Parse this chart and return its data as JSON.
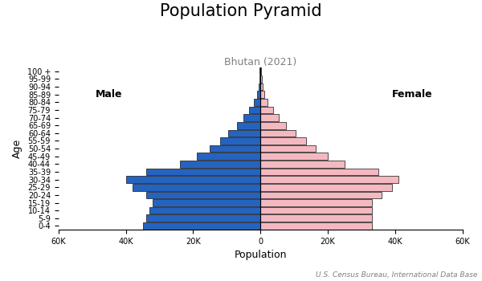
{
  "title": "Population Pyramid",
  "subtitle": "Bhutan (2021)",
  "xlabel": "Population",
  "ylabel": "Age",
  "source": "U.S. Census Bureau, International Data Base",
  "age_groups": [
    "0-4",
    "5-9",
    "10-14",
    "15-19",
    "20-24",
    "25-29",
    "30-34",
    "35-39",
    "40-44",
    "45-49",
    "50-54",
    "55-59",
    "60-64",
    "65-69",
    "70-74",
    "75-79",
    "80-84",
    "85-89",
    "90-94",
    "95-99",
    "100 +"
  ],
  "male": [
    35000,
    34000,
    33000,
    32000,
    34000,
    38000,
    40000,
    34000,
    24000,
    19000,
    15000,
    12000,
    9500,
    7000,
    5000,
    3500,
    2000,
    1000,
    500,
    300,
    200
  ],
  "female": [
    33000,
    33000,
    33000,
    33000,
    36000,
    39000,
    41000,
    35000,
    25000,
    20000,
    16500,
    13500,
    10500,
    7500,
    5500,
    3800,
    2200,
    1200,
    700,
    400,
    300
  ],
  "male_color": "#2563c0",
  "female_color": "#f4b8c1",
  "bar_edgecolor": "#111111",
  "bar_linewidth": 0.5,
  "xlim": 60000,
  "background_color": "#ffffff",
  "male_label": "Male",
  "female_label": "Female",
  "title_fontsize": 15,
  "subtitle_fontsize": 9,
  "axis_label_fontsize": 9,
  "tick_fontsize": 7,
  "source_fontsize": 6.5
}
